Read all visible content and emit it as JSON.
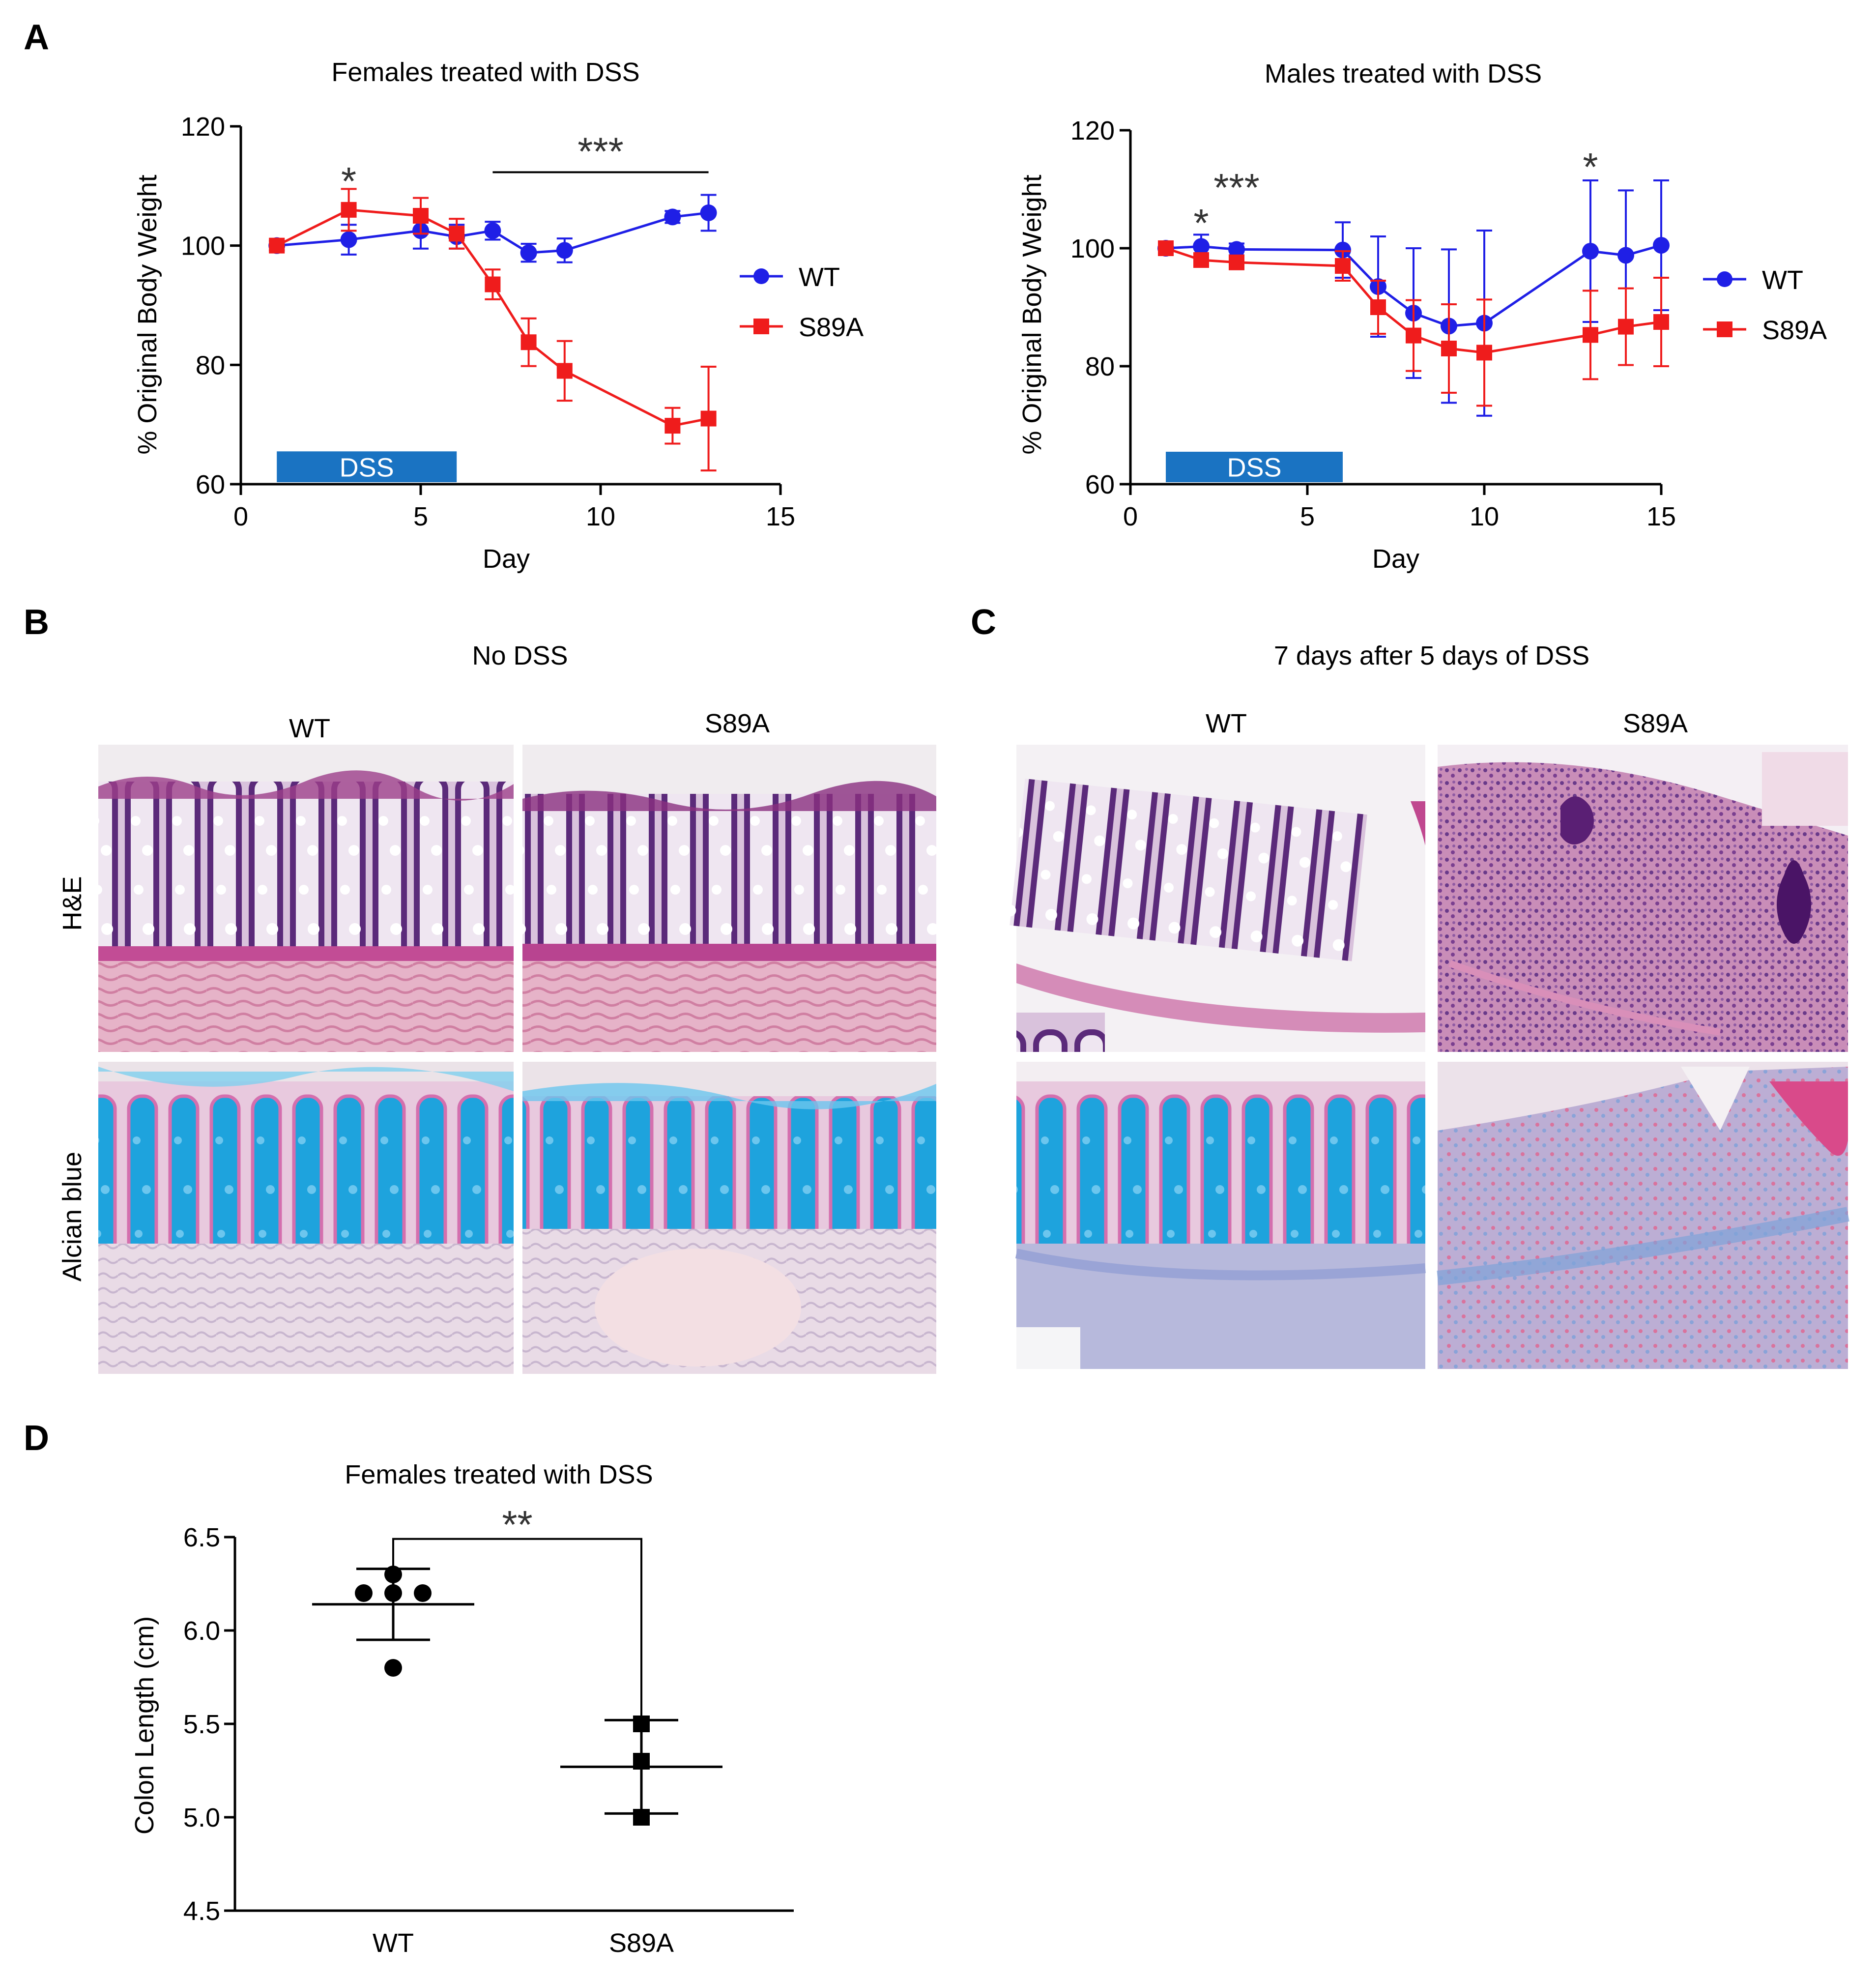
{
  "panel_letters": {
    "a": "A",
    "b": "B",
    "c": "C",
    "d": "D"
  },
  "colors": {
    "wt": "#1f1fe6",
    "s89a": "#ef1c1c",
    "dss_bar": "#1a73c2",
    "axis": "#000000"
  },
  "chart_data": [
    {
      "id": "A-left",
      "type": "line",
      "title": "Females treated with DSS",
      "xlabel": "Day",
      "ylabel": "% Original Body Weight",
      "xlim": [
        0,
        15
      ],
      "ylim": [
        60,
        120
      ],
      "xticks": [
        0,
        5,
        10,
        15
      ],
      "yticks": [
        60,
        80,
        100,
        120
      ],
      "legend": "right",
      "dss_bar": {
        "label": "DSS",
        "x_start": 1,
        "x_end": 6
      },
      "series": [
        {
          "name": "WT",
          "marker": "circle",
          "x": [
            1,
            3,
            5,
            6,
            7,
            8,
            9,
            12,
            13
          ],
          "y": [
            100,
            101,
            102.5,
            101.5,
            102.5,
            98.8,
            99.2,
            104.8,
            105.5
          ],
          "err": [
            0.8,
            2.5,
            3,
            2,
            1.5,
            1.5,
            2,
            1,
            3
          ]
        },
        {
          "name": "S89A",
          "marker": "square",
          "x": [
            1,
            3,
            5,
            6,
            7,
            8,
            9,
            12,
            13
          ],
          "y": [
            100,
            106,
            105,
            102,
            93.5,
            83.8,
            79,
            69.8,
            71
          ],
          "err": [
            0.8,
            3.5,
            3,
            2.5,
            2.5,
            4,
            5,
            3,
            8.7
          ]
        }
      ],
      "annotations": [
        {
          "text": "*",
          "x": 3,
          "y": 111
        },
        {
          "text": "***",
          "x": 10,
          "y": 116,
          "line_x": [
            7,
            13
          ],
          "line_y": 112.3
        }
      ]
    },
    {
      "id": "A-right",
      "type": "line",
      "title": "Males treated with DSS",
      "xlabel": "Day",
      "ylabel": "% Original Body Weight",
      "xlim": [
        0,
        15
      ],
      "ylim": [
        60,
        120
      ],
      "xticks": [
        0,
        5,
        10,
        15
      ],
      "yticks": [
        60,
        80,
        100,
        120
      ],
      "legend": "right",
      "dss_bar": {
        "label": "DSS",
        "x_start": 1,
        "x_end": 6
      },
      "series": [
        {
          "name": "WT",
          "marker": "circle",
          "x": [
            1,
            2,
            3,
            6,
            7,
            8,
            9,
            10,
            13,
            14,
            15
          ],
          "y": [
            100,
            100.3,
            99.8,
            99.7,
            93.5,
            89,
            86.8,
            87.3,
            99.5,
            98.8,
            100.5
          ],
          "err": [
            0.5,
            2,
            1,
            4.7,
            8.5,
            11,
            13,
            15.7,
            12,
            11,
            11
          ]
        },
        {
          "name": "S89A",
          "marker": "square",
          "x": [
            1,
            2,
            3,
            6,
            7,
            8,
            9,
            10,
            13,
            14,
            15
          ],
          "y": [
            100,
            98,
            97.6,
            97,
            90,
            85.2,
            83,
            82.3,
            85.3,
            86.7,
            87.5
          ],
          "err": [
            0.5,
            1,
            1,
            2.5,
            4.5,
            6,
            7.5,
            9,
            7.5,
            6.5,
            7.5
          ]
        }
      ],
      "annotations": [
        {
          "text": "*",
          "x": 2,
          "y": 104.5
        },
        {
          "text": "***",
          "x": 3,
          "y": 110.5
        },
        {
          "text": "*",
          "x": 13,
          "y": 114
        }
      ]
    },
    {
      "id": "D",
      "type": "scatter",
      "title": "Females treated with DSS",
      "xlabel": "",
      "ylabel": "Colon Length (cm)",
      "ylim": [
        4.5,
        6.5
      ],
      "yticks": [
        4.5,
        5.0,
        5.5,
        6.0,
        6.5
      ],
      "ytick_labels": [
        "4.5",
        "5.0",
        "5.5",
        "6.0",
        "6.5"
      ],
      "categories": [
        "WT",
        "S89A"
      ],
      "groups": [
        {
          "name": "WT",
          "marker": "circle",
          "points": [
            [
              -0.12,
              6.2
            ],
            [
              0.0,
              6.3
            ],
            [
              0.12,
              6.2
            ],
            [
              0.0,
              6.2
            ],
            [
              0.0,
              5.8
            ]
          ],
          "mean": 6.14,
          "sd_low": 5.95,
          "sd_high": 6.33
        },
        {
          "name": "S89A",
          "marker": "square",
          "points": [
            [
              0,
              5.5
            ],
            [
              0,
              5.3
            ],
            [
              0,
              5.0
            ]
          ],
          "mean": 5.27,
          "sd_low": 5.02,
          "sd_high": 5.52
        }
      ],
      "significance": {
        "text": "**",
        "y_line": 6.49
      }
    }
  ],
  "panel_b": {
    "title": "No DSS",
    "columns": [
      "WT",
      "S89A"
    ],
    "rows": [
      "H&E",
      "Alcian blue"
    ]
  },
  "panel_c": {
    "title": "7 days after 5 days of DSS",
    "columns": [
      "WT",
      "S89A"
    ]
  }
}
